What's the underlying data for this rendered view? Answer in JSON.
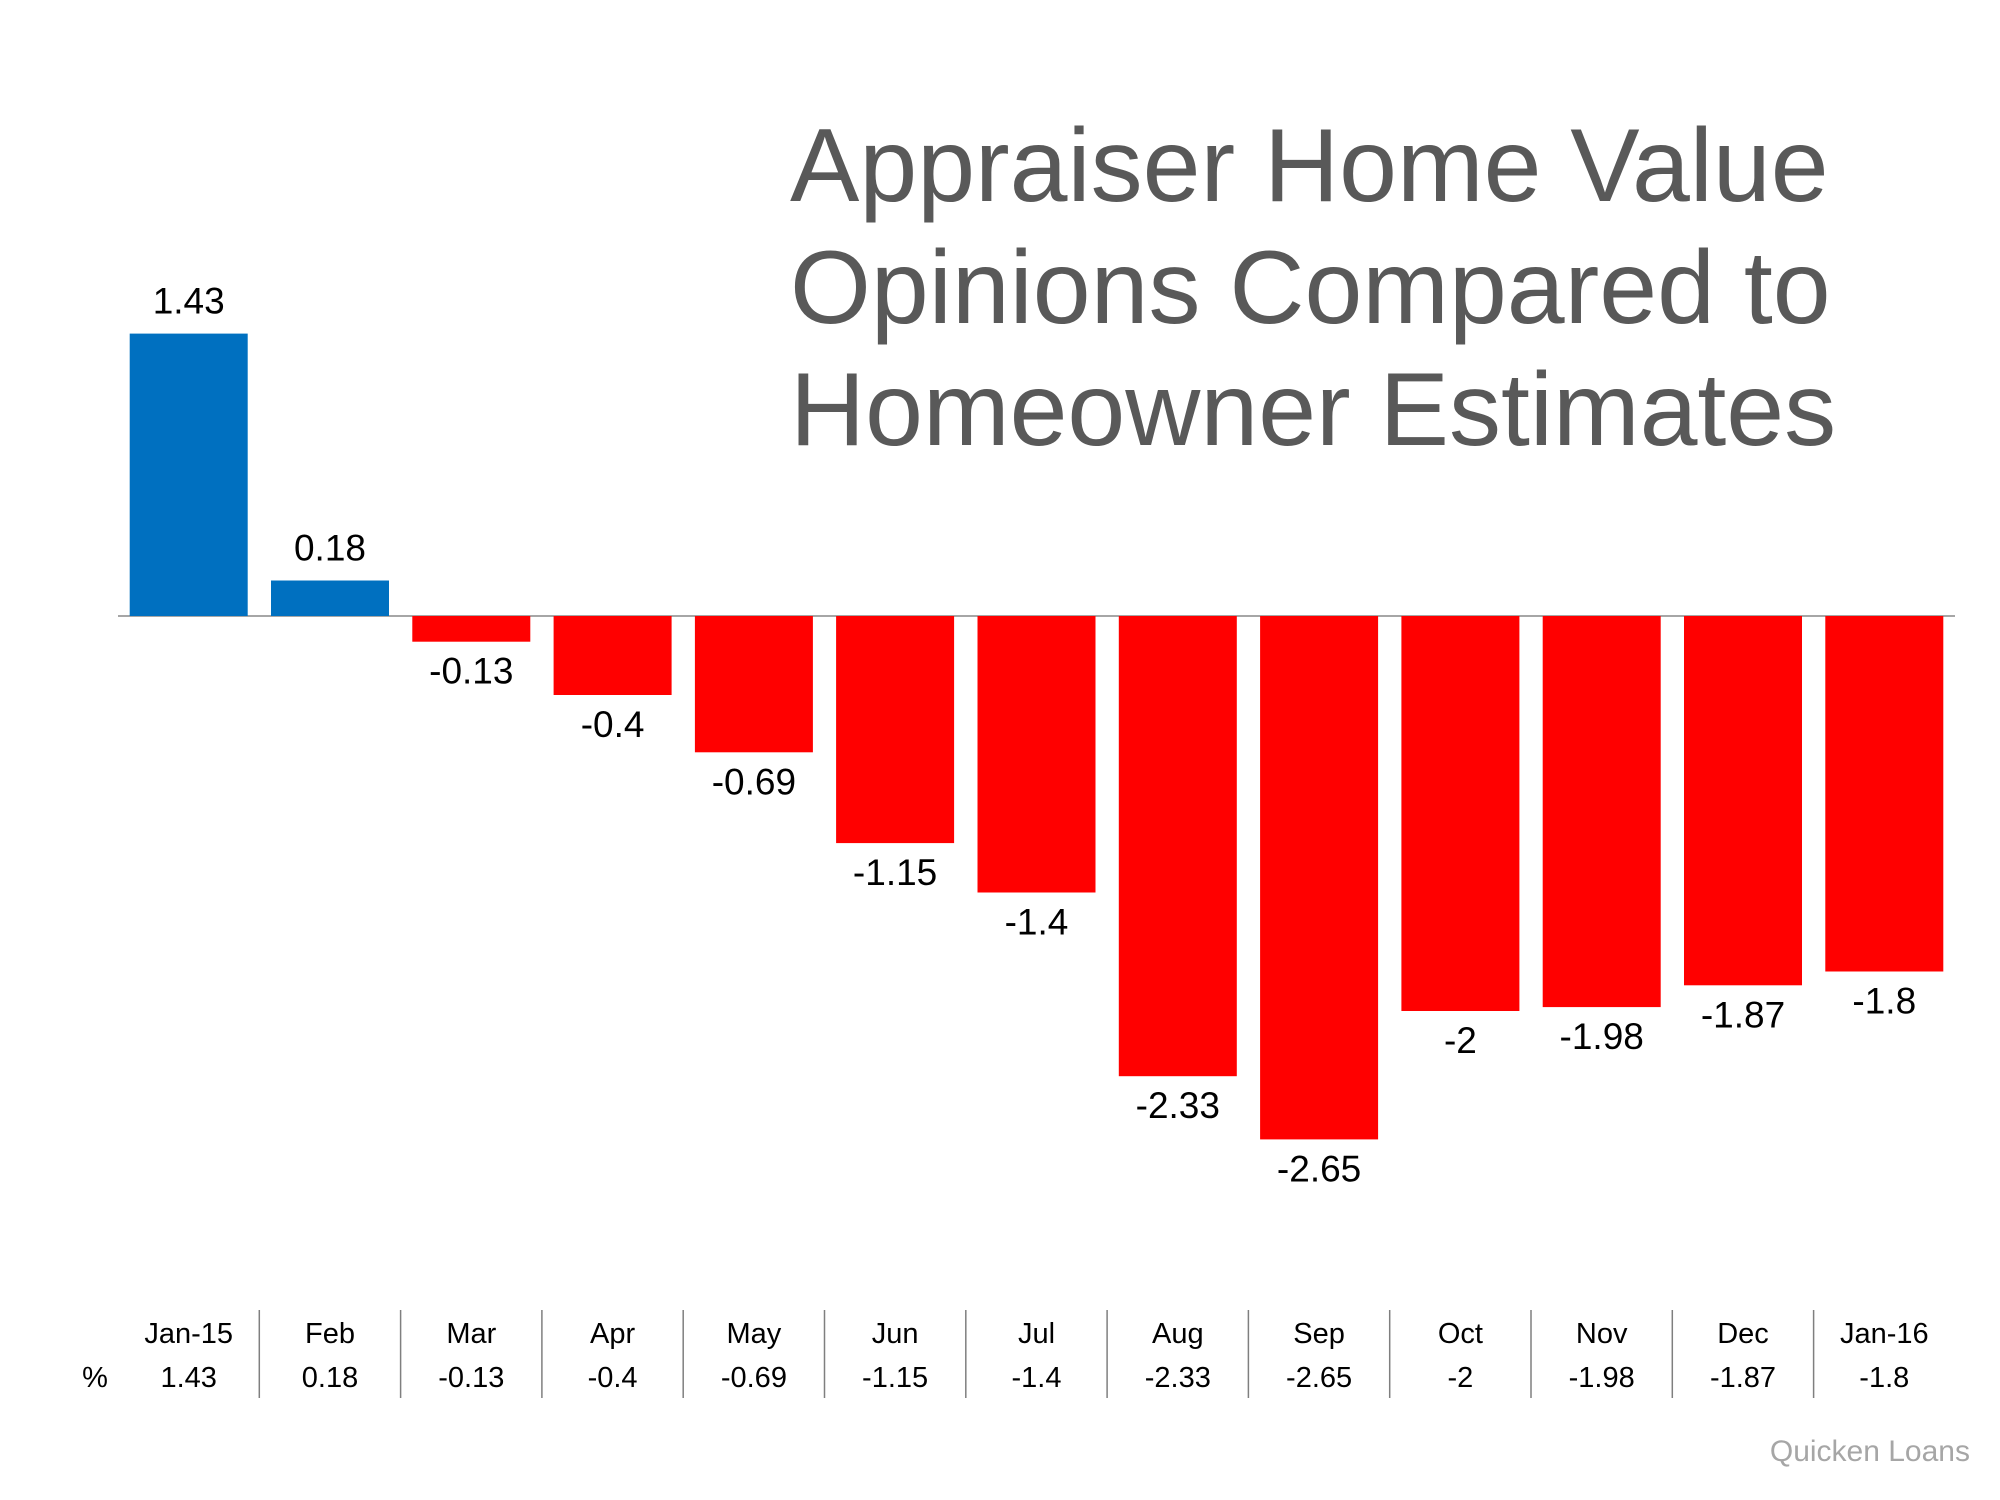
{
  "title_lines": [
    "Appraiser Home Value",
    "Opinions Compared to",
    "Homeowner Estimates"
  ],
  "source": "Quicken Loans",
  "table": {
    "row_label": "%"
  },
  "colors": {
    "positive": "#0070c0",
    "negative": "#ff0000",
    "axis": "#a6a6a6",
    "title": "#595959",
    "text": "#000000",
    "separator": "#7f7f7f"
  },
  "chart_data": {
    "type": "bar",
    "title": "Appraiser Home Value Opinions Compared to Homeowner Estimates",
    "categories": [
      "Jan-15",
      "Feb",
      "Mar",
      "Apr",
      "May",
      "Jun",
      "Jul",
      "Aug",
      "Sep",
      "Oct",
      "Nov",
      "Dec",
      "Jan-16"
    ],
    "values": [
      1.43,
      0.18,
      -0.13,
      -0.4,
      -0.69,
      -1.15,
      -1.4,
      -2.33,
      -2.65,
      -2,
      -1.98,
      -1.87,
      -1.8
    ],
    "value_labels": [
      "1.43",
      "0.18",
      "-0.13",
      "-0.4",
      "-0.69",
      "-1.15",
      "-1.4",
      "-2.33",
      "-2.65",
      "-2",
      "-1.98",
      "-1.87",
      "-1.8"
    ],
    "xlabel": "",
    "ylabel": "",
    "grid": false,
    "legend": "none"
  }
}
